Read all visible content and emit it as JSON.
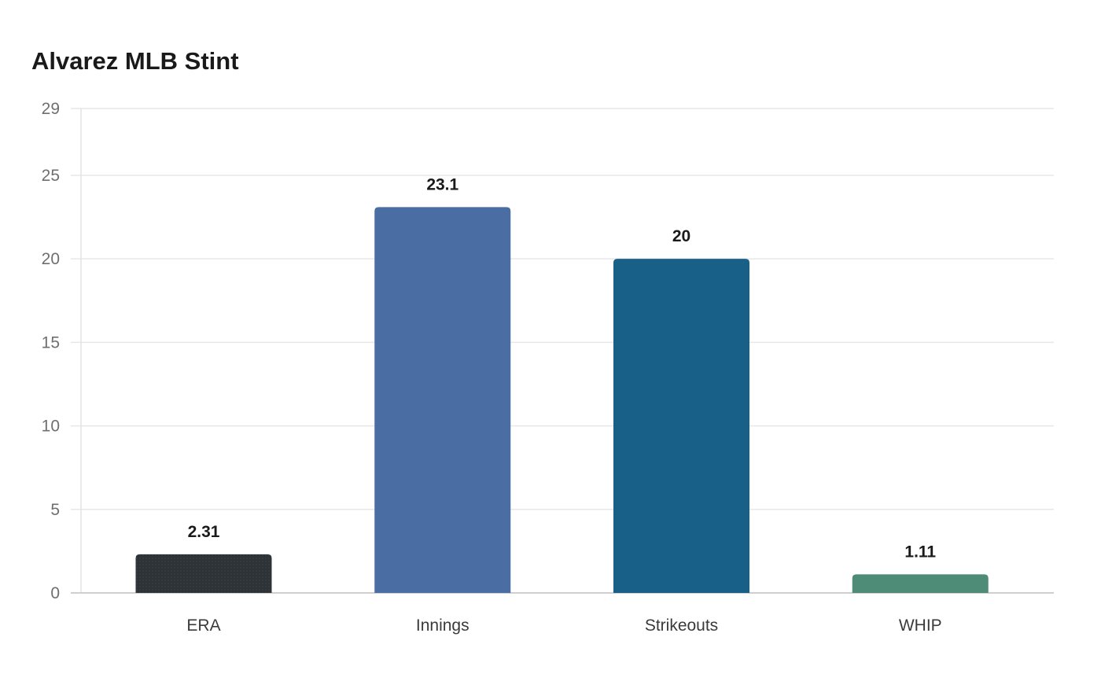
{
  "chart_data": {
    "type": "bar",
    "title": "Alvarez MLB Stint",
    "categories": [
      "ERA",
      "Innings",
      "Strikeouts",
      "WHIP"
    ],
    "values": [
      2.31,
      23.1,
      20,
      1.11
    ],
    "value_labels": [
      "2.31",
      "23.1",
      "20",
      "1.11"
    ],
    "colors": [
      "#2d3237",
      "#4a6da3",
      "#186088",
      "#4e8c78"
    ],
    "yticks": [
      0,
      5,
      10,
      15,
      20,
      25,
      29
    ],
    "ylim": [
      0,
      29
    ],
    "xlabel": "",
    "ylabel": "",
    "grid": true,
    "legend": "none"
  }
}
